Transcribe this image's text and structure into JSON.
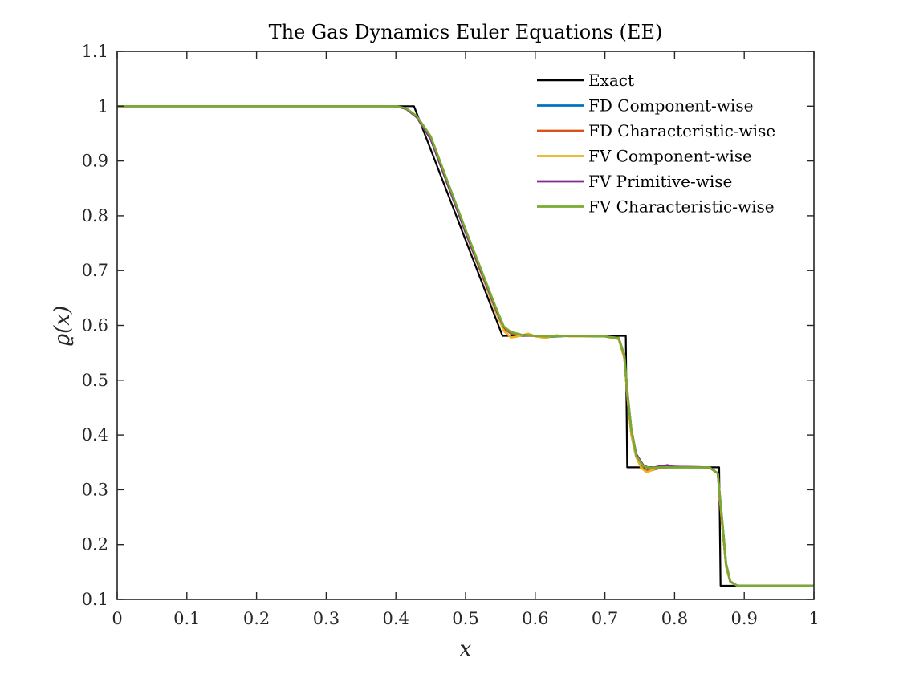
{
  "chart_data": {
    "type": "line",
    "title": "The Gas Dynamics Euler Equations (EE)",
    "xlabel": "x",
    "ylabel": "ϱ(x)",
    "xlim": [
      0,
      1
    ],
    "ylim": [
      0.1,
      1.1
    ],
    "xticks": [
      "0",
      "0.1",
      "0.2",
      "0.3",
      "0.4",
      "0.5",
      "0.6",
      "0.7",
      "0.8",
      "0.9",
      "1"
    ],
    "yticks": [
      "0.1",
      "0.2",
      "0.3",
      "0.4",
      "0.5",
      "0.6",
      "0.7",
      "0.8",
      "0.9",
      "1",
      "1.1"
    ],
    "grid": false,
    "legend_position": "top-right",
    "series": [
      {
        "name": "Exact",
        "color": "#000000",
        "x": [
          0,
          0.426,
          0.553,
          0.553,
          0.73,
          0.732,
          0.864,
          0.866,
          1.0
        ],
        "y": [
          1.0,
          1.0,
          0.581,
          0.581,
          0.581,
          0.341,
          0.341,
          0.125,
          0.125
        ]
      },
      {
        "name": "FD Component-wise",
        "color": "#0072BD",
        "x": [
          0,
          0.4,
          0.415,
          0.43,
          0.45,
          0.5,
          0.545,
          0.555,
          0.565,
          0.58,
          0.6,
          0.62,
          0.65,
          0.7,
          0.72,
          0.728,
          0.733,
          0.738,
          0.745,
          0.755,
          0.765,
          0.78,
          0.8,
          0.85,
          0.862,
          0.868,
          0.874,
          0.88,
          0.89,
          1.0
        ],
        "y": [
          1.0,
          1.0,
          0.995,
          0.98,
          0.94,
          0.77,
          0.62,
          0.595,
          0.585,
          0.582,
          0.581,
          0.579,
          0.581,
          0.58,
          0.575,
          0.54,
          0.46,
          0.4,
          0.36,
          0.343,
          0.339,
          0.341,
          0.341,
          0.341,
          0.33,
          0.24,
          0.16,
          0.132,
          0.125,
          0.125
        ]
      },
      {
        "name": "FD Characteristic-wise",
        "color": "#D95319",
        "x": [
          0,
          0.4,
          0.415,
          0.43,
          0.45,
          0.5,
          0.545,
          0.555,
          0.565,
          0.58,
          0.6,
          0.62,
          0.65,
          0.7,
          0.72,
          0.728,
          0.733,
          0.738,
          0.745,
          0.755,
          0.765,
          0.78,
          0.8,
          0.85,
          0.862,
          0.868,
          0.874,
          0.88,
          0.89,
          1.0
        ],
        "y": [
          1.0,
          1.0,
          0.995,
          0.98,
          0.94,
          0.77,
          0.62,
          0.593,
          0.586,
          0.582,
          0.581,
          0.58,
          0.581,
          0.58,
          0.575,
          0.54,
          0.46,
          0.4,
          0.36,
          0.338,
          0.335,
          0.34,
          0.342,
          0.341,
          0.33,
          0.24,
          0.16,
          0.132,
          0.125,
          0.125
        ]
      },
      {
        "name": "FV Component-wise",
        "color": "#EDB120",
        "x": [
          0,
          0.4,
          0.415,
          0.43,
          0.45,
          0.5,
          0.545,
          0.555,
          0.565,
          0.575,
          0.59,
          0.6,
          0.615,
          0.63,
          0.65,
          0.7,
          0.72,
          0.728,
          0.733,
          0.738,
          0.745,
          0.752,
          0.76,
          0.768,
          0.78,
          0.8,
          0.85,
          0.862,
          0.868,
          0.874,
          0.88,
          0.89,
          1.0
        ],
        "y": [
          1.0,
          1.0,
          0.995,
          0.98,
          0.94,
          0.77,
          0.62,
          0.59,
          0.578,
          0.58,
          0.585,
          0.58,
          0.577,
          0.582,
          0.58,
          0.58,
          0.575,
          0.54,
          0.46,
          0.4,
          0.36,
          0.34,
          0.332,
          0.336,
          0.343,
          0.341,
          0.341,
          0.33,
          0.24,
          0.16,
          0.132,
          0.125,
          0.125
        ]
      },
      {
        "name": "FV Primitive-wise",
        "color": "#7E2F8E",
        "x": [
          0,
          0.4,
          0.415,
          0.43,
          0.45,
          0.5,
          0.545,
          0.555,
          0.565,
          0.58,
          0.6,
          0.62,
          0.65,
          0.7,
          0.72,
          0.728,
          0.733,
          0.738,
          0.745,
          0.755,
          0.765,
          0.775,
          0.79,
          0.8,
          0.85,
          0.862,
          0.868,
          0.874,
          0.88,
          0.89,
          1.0
        ],
        "y": [
          1.0,
          1.0,
          0.995,
          0.98,
          0.94,
          0.77,
          0.625,
          0.597,
          0.588,
          0.583,
          0.581,
          0.58,
          0.581,
          0.58,
          0.577,
          0.545,
          0.47,
          0.41,
          0.365,
          0.345,
          0.339,
          0.342,
          0.345,
          0.342,
          0.341,
          0.33,
          0.25,
          0.165,
          0.133,
          0.125,
          0.125
        ]
      },
      {
        "name": "FV Characteristic-wise",
        "color": "#77AC30",
        "x": [
          0,
          0.4,
          0.415,
          0.43,
          0.45,
          0.5,
          0.545,
          0.555,
          0.565,
          0.58,
          0.6,
          0.62,
          0.65,
          0.7,
          0.72,
          0.728,
          0.733,
          0.738,
          0.745,
          0.755,
          0.765,
          0.78,
          0.8,
          0.85,
          0.862,
          0.868,
          0.874,
          0.88,
          0.89,
          1.0
        ],
        "y": [
          1.0,
          1.0,
          0.996,
          0.982,
          0.945,
          0.775,
          0.628,
          0.598,
          0.588,
          0.583,
          0.581,
          0.58,
          0.581,
          0.58,
          0.577,
          0.545,
          0.47,
          0.41,
          0.362,
          0.343,
          0.34,
          0.341,
          0.341,
          0.341,
          0.33,
          0.25,
          0.165,
          0.133,
          0.125,
          0.125
        ]
      }
    ]
  }
}
